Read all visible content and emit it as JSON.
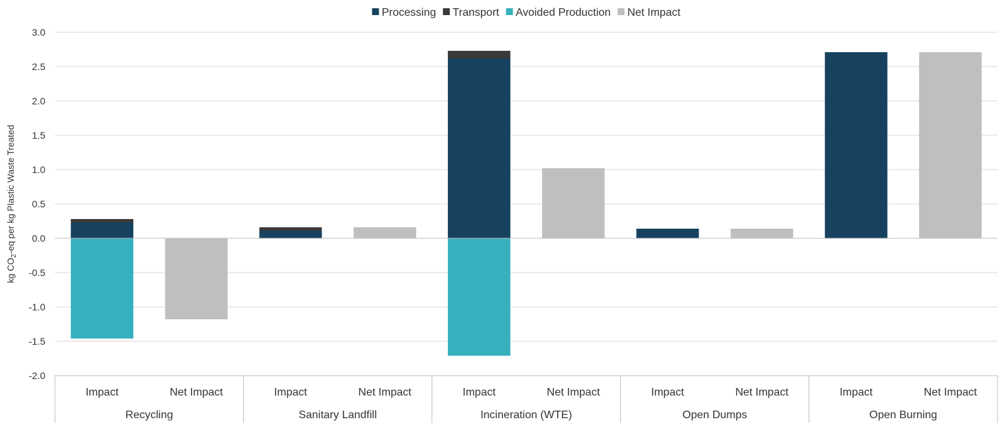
{
  "chart_data": {
    "type": "bar",
    "stacked": true,
    "title": "",
    "ylabel_prefix": "kg CO",
    "ylabel_sub": "2",
    "ylabel_suffix": "-eq per kg Plastic Waste Treated",
    "ylim": [
      -2.0,
      3.0
    ],
    "yticks": [
      "3.0",
      "2.5",
      "2.0",
      "1.5",
      "1.0",
      "0.5",
      "0.0",
      "-0.5",
      "-1.0",
      "-1.5",
      "-2.0"
    ],
    "ytick_values": [
      3.0,
      2.5,
      2.0,
      1.5,
      1.0,
      0.5,
      0.0,
      -0.5,
      -1.0,
      -1.5,
      -2.0
    ],
    "grid": true,
    "legend_position": "top-center",
    "groups": [
      "Recycling",
      "Sanitary Landfill",
      "Incineration (WTE)",
      "Open Dumps",
      "Open Burning"
    ],
    "categories": [
      "Impact",
      "Net Impact",
      "Impact",
      "Net Impact",
      "Impact",
      "Net Impact",
      "Impact",
      "Net Impact",
      "Impact",
      "Net Impact"
    ],
    "series": [
      {
        "name": "Processing",
        "color": "#17425f",
        "values": [
          0.23,
          0,
          0.11,
          0,
          2.62,
          0,
          0.14,
          0,
          2.71,
          0
        ]
      },
      {
        "name": "Transport",
        "color": "#3a3a3a",
        "values": [
          0.05,
          0,
          0.05,
          0,
          0.11,
          0,
          0,
          0,
          0,
          0
        ]
      },
      {
        "name": "Avoided Production",
        "color": "#37b0bd",
        "values": [
          -1.46,
          0,
          0,
          0,
          -1.71,
          0,
          0,
          0,
          0,
          0
        ]
      },
      {
        "name": "Net Impact",
        "color": "#bfbfbf",
        "values": [
          0,
          -1.18,
          0,
          0.16,
          0,
          1.02,
          0,
          0.14,
          0,
          2.71
        ]
      }
    ]
  }
}
